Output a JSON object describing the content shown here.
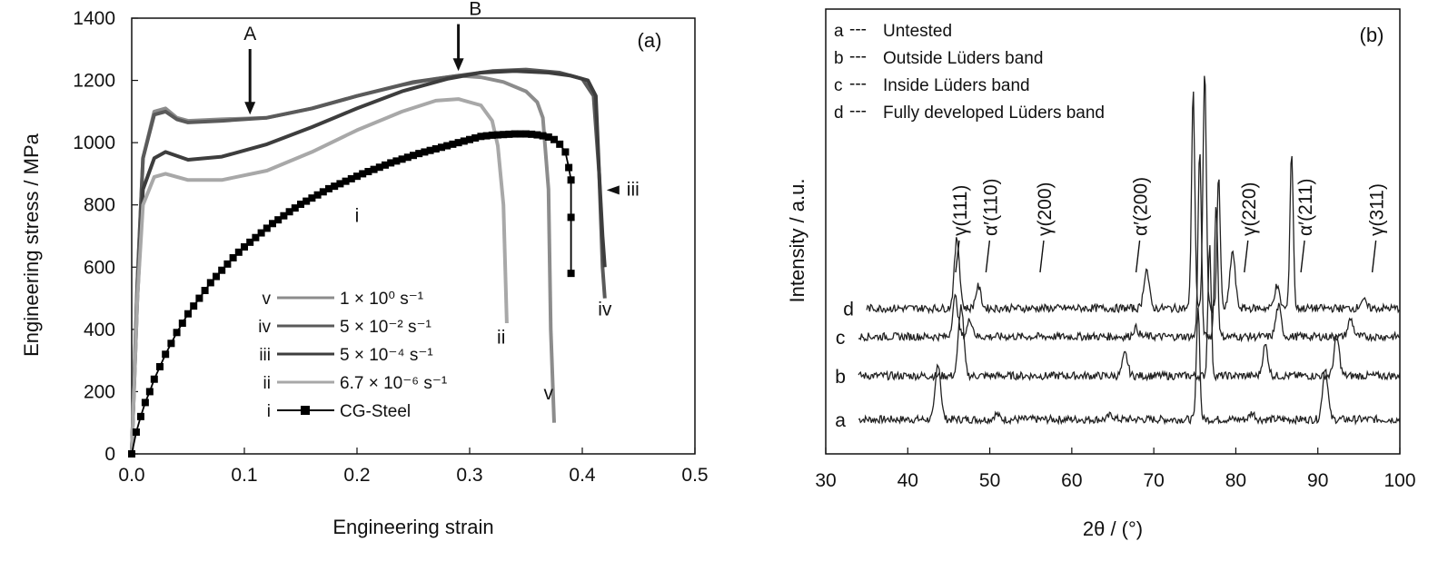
{
  "chart_data": [
    {
      "panel_label": "(a)",
      "type": "line",
      "xlabel": "Engineering strain",
      "ylabel": "Engineering stress / MPa",
      "xlim": [
        0,
        0.5
      ],
      "ylim": [
        0,
        1400
      ],
      "xticks": [
        "0.0",
        "0.1",
        "0.2",
        "0.3",
        "0.4",
        "0.5"
      ],
      "yticks": [
        "0",
        "200",
        "400",
        "600",
        "800",
        "1000",
        "1200",
        "1400"
      ],
      "grid": false,
      "legend_position": "bottom-center",
      "series": [
        {
          "id": "v",
          "color": "#8c8c8c",
          "legend_text": "1 × 10⁰ s⁻¹",
          "x": [
            0,
            0.005,
            0.01,
            0.02,
            0.03,
            0.04,
            0.05,
            0.08,
            0.12,
            0.16,
            0.2,
            0.24,
            0.27,
            0.29,
            0.31,
            0.33,
            0.35,
            0.36,
            0.365,
            0.37,
            0.372,
            0.375
          ],
          "y": [
            0,
            550,
            950,
            1100,
            1110,
            1080,
            1070,
            1075,
            1080,
            1110,
            1150,
            1185,
            1205,
            1215,
            1210,
            1195,
            1165,
            1130,
            1080,
            850,
            400,
            100
          ]
        },
        {
          "id": "iv",
          "color": "#5a5a5a",
          "legend_text": "5 × 10⁻² s⁻¹",
          "x": [
            0,
            0.005,
            0.01,
            0.02,
            0.03,
            0.04,
            0.05,
            0.08,
            0.12,
            0.16,
            0.2,
            0.25,
            0.29,
            0.32,
            0.35,
            0.38,
            0.4,
            0.41,
            0.415,
            0.418,
            0.42
          ],
          "y": [
            0,
            550,
            950,
            1090,
            1100,
            1075,
            1065,
            1070,
            1080,
            1110,
            1150,
            1195,
            1215,
            1230,
            1235,
            1225,
            1205,
            1150,
            900,
            600,
            500
          ]
        },
        {
          "id": "iii",
          "color": "#3d3d3d",
          "legend_text": "5 × 10⁻⁴ s⁻¹",
          "x": [
            0,
            0.005,
            0.01,
            0.02,
            0.03,
            0.05,
            0.08,
            0.12,
            0.16,
            0.2,
            0.24,
            0.28,
            0.31,
            0.34,
            0.37,
            0.39,
            0.405,
            0.412,
            0.415,
            0.418,
            0.42
          ],
          "y": [
            0,
            500,
            850,
            950,
            970,
            945,
            955,
            995,
            1050,
            1110,
            1165,
            1205,
            1225,
            1230,
            1225,
            1215,
            1200,
            1150,
            900,
            700,
            600
          ]
        },
        {
          "id": "ii",
          "color": "#a8a8a8",
          "legend_text": "6.7 × 10⁻⁶ s⁻¹",
          "x": [
            0,
            0.005,
            0.01,
            0.02,
            0.03,
            0.05,
            0.08,
            0.12,
            0.16,
            0.2,
            0.24,
            0.27,
            0.29,
            0.31,
            0.32,
            0.325,
            0.33,
            0.333
          ],
          "y": [
            0,
            500,
            800,
            890,
            900,
            880,
            880,
            910,
            970,
            1040,
            1100,
            1135,
            1140,
            1120,
            1070,
            990,
            800,
            420
          ]
        },
        {
          "id": "i",
          "color": "#000000",
          "marker": "square",
          "legend_text": "CG-Steel",
          "x": [
            0,
            0.004,
            0.008,
            0.012,
            0.016,
            0.02,
            0.025,
            0.03,
            0.035,
            0.04,
            0.045,
            0.05,
            0.055,
            0.06,
            0.065,
            0.07,
            0.075,
            0.08,
            0.085,
            0.09,
            0.095,
            0.1,
            0.105,
            0.11,
            0.115,
            0.12,
            0.125,
            0.13,
            0.135,
            0.14,
            0.145,
            0.15,
            0.155,
            0.16,
            0.165,
            0.17,
            0.175,
            0.18,
            0.185,
            0.19,
            0.195,
            0.2,
            0.205,
            0.21,
            0.215,
            0.22,
            0.225,
            0.23,
            0.235,
            0.24,
            0.245,
            0.25,
            0.255,
            0.26,
            0.265,
            0.27,
            0.275,
            0.28,
            0.285,
            0.29,
            0.295,
            0.3,
            0.305,
            0.31,
            0.315,
            0.32,
            0.325,
            0.33,
            0.335,
            0.34,
            0.345,
            0.35,
            0.355,
            0.36,
            0.365,
            0.37,
            0.375,
            0.38,
            0.385,
            0.388,
            0.39,
            0.39,
            0.39
          ],
          "y": [
            0,
            70,
            120,
            165,
            200,
            240,
            280,
            320,
            355,
            390,
            420,
            450,
            475,
            500,
            525,
            550,
            570,
            590,
            610,
            630,
            648,
            665,
            680,
            695,
            710,
            725,
            740,
            752,
            765,
            778,
            790,
            802,
            812,
            822,
            832,
            842,
            852,
            860,
            868,
            876,
            884,
            892,
            900,
            907,
            914,
            921,
            928,
            935,
            941,
            947,
            953,
            959,
            965,
            970,
            975,
            980,
            985,
            990,
            995,
            1000,
            1005,
            1010,
            1015,
            1020,
            1022,
            1024,
            1025,
            1026,
            1027,
            1028,
            1028,
            1028,
            1027,
            1025,
            1022,
            1018,
            1010,
            995,
            970,
            920,
            880,
            760,
            580
          ]
        }
      ],
      "annotations": [
        {
          "text": "A",
          "x": 0.105,
          "y": 1330,
          "arrow_to": [
            0.105,
            1090
          ]
        },
        {
          "text": "B",
          "x": 0.305,
          "y": 1410,
          "arrow_to": [
            0.29,
            1230
          ]
        },
        {
          "text": "iii",
          "x": 0.445,
          "y": 830,
          "arrow_to": [
            0.42,
            830
          ]
        },
        {
          "text": "iv",
          "x": 0.42,
          "y": 445
        },
        {
          "text": "i",
          "x": 0.2,
          "y": 745
        },
        {
          "text": "ii",
          "x": 0.328,
          "y": 355
        },
        {
          "text": "v",
          "x": 0.37,
          "y": 175
        }
      ]
    },
    {
      "panel_label": "(b)",
      "type": "line",
      "xlabel": "2θ / (°)",
      "ylabel": "Intensity / a.u.",
      "xlim": [
        30,
        100
      ],
      "xticks": [
        "30",
        "40",
        "50",
        "60",
        "70",
        "80",
        "90",
        "100"
      ],
      "grid": false,
      "legend_position": "top-left",
      "legend": [
        {
          "key": "a",
          "sep": "---",
          "text": "Untested"
        },
        {
          "key": "b",
          "sep": "---",
          "text": "Outside Lüders band"
        },
        {
          "key": "c",
          "sep": "---",
          "text": "Inside Lüders band"
        },
        {
          "key": "d",
          "sep": "---",
          "text": "Fully developed Lüders band"
        }
      ],
      "series": [
        {
          "id": "a",
          "label": "a",
          "x_start": 34,
          "baseline": 0.0,
          "peaks": [
            [
              43.7,
              1.3
            ],
            [
              50.8,
              0.12
            ],
            [
              64.8,
              0.1
            ],
            [
              75.4,
              2.6
            ],
            [
              82,
              0.15
            ],
            [
              90.9,
              1.2
            ]
          ]
        },
        {
          "id": "b",
          "label": "b",
          "x_start": 34,
          "baseline": 1.0,
          "peaks": [
            [
              46.5,
              1.6
            ],
            [
              66.5,
              0.5
            ],
            [
              76.8,
              3.0
            ],
            [
              83.6,
              0.7
            ],
            [
              92.3,
              0.9
            ]
          ]
        },
        {
          "id": "c",
          "label": "c",
          "x_start": 34,
          "baseline": 1.9,
          "peaks": [
            [
              45.8,
              0.9
            ],
            [
              47.6,
              0.4
            ],
            [
              67.8,
              0.2
            ],
            [
              75.6,
              4.3
            ],
            [
              77.6,
              3.0
            ],
            [
              85.2,
              0.7
            ],
            [
              94,
              0.4
            ]
          ]
        },
        {
          "id": "d",
          "label": "d",
          "x_start": 35,
          "baseline": 2.55,
          "peaks": [
            [
              46.0,
              1.6
            ],
            [
              48.6,
              0.5
            ],
            [
              69.1,
              0.9
            ],
            [
              74.8,
              5.0
            ],
            [
              76.2,
              5.5
            ],
            [
              77.9,
              3.0
            ],
            [
              79.6,
              1.3
            ],
            [
              85.0,
              0.5
            ],
            [
              86.8,
              3.6
            ],
            [
              95.5,
              0.2
            ]
          ]
        }
      ],
      "peak_labels": [
        {
          "text": "γ(111)",
          "x": 46.5
        },
        {
          "text": "α′(110)",
          "x": 50.2
        },
        {
          "text": "γ(200)",
          "x": 56.8
        },
        {
          "text": "α′(200)",
          "x": 68.5
        },
        {
          "text": "γ(220)",
          "x": 81.7
        },
        {
          "text": "α′(211)",
          "x": 88.6
        },
        {
          "text": "γ(311)",
          "x": 97.3
        }
      ]
    }
  ]
}
